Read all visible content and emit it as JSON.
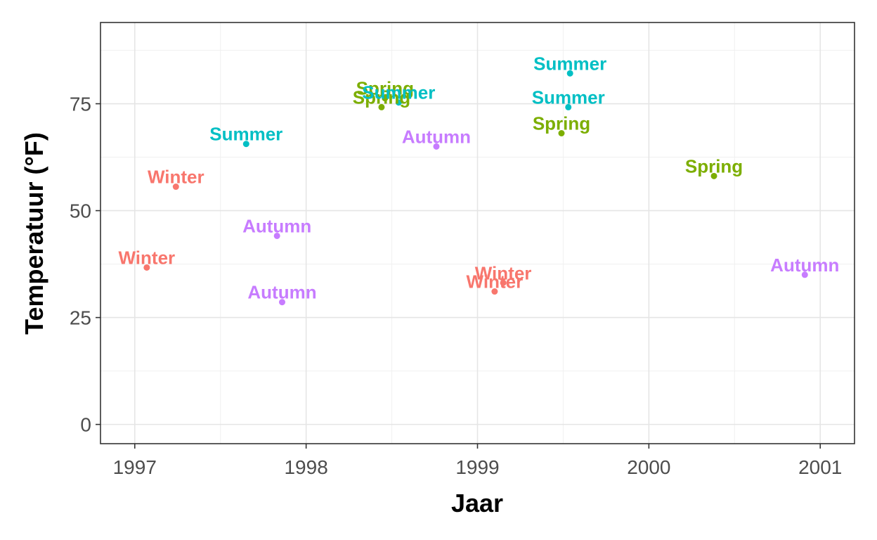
{
  "chart_data": {
    "type": "scatter",
    "xlabel": "Jaar",
    "ylabel": "Temperatuur (°F)",
    "xlim": [
      1996.8,
      2001.2
    ],
    "ylim": [
      -4.5,
      94
    ],
    "x_ticks": [
      1997,
      1998,
      1999,
      2000,
      2001
    ],
    "y_ticks": [
      0,
      25,
      50,
      75
    ],
    "grid": true,
    "colors": {
      "Winter": "#F8766D",
      "Spring": "#7CAE00",
      "Summer": "#00BFC4",
      "Autumn": "#C77CFF"
    },
    "points": [
      {
        "x": 1997.07,
        "y": 36.7,
        "label": "Winter"
      },
      {
        "x": 1997.24,
        "y": 55.6,
        "label": "Winter"
      },
      {
        "x": 1997.65,
        "y": 65.6,
        "label": "Summer"
      },
      {
        "x": 1997.83,
        "y": 44.1,
        "label": "Autumn"
      },
      {
        "x": 1997.86,
        "y": 28.6,
        "label": "Autumn"
      },
      {
        "x": 1998.44,
        "y": 74.2,
        "label": "Spring"
      },
      {
        "x": 1998.46,
        "y": 76.3,
        "label": "Spring"
      },
      {
        "x": 1998.54,
        "y": 75.3,
        "label": "Summer"
      },
      {
        "x": 1998.76,
        "y": 65.0,
        "label": "Autumn"
      },
      {
        "x": 1999.1,
        "y": 31.1,
        "label": "Winter"
      },
      {
        "x": 1999.15,
        "y": 33.1,
        "label": "Winter"
      },
      {
        "x": 1999.49,
        "y": 68.1,
        "label": "Spring"
      },
      {
        "x": 1999.53,
        "y": 74.2,
        "label": "Summer"
      },
      {
        "x": 1999.54,
        "y": 82.1,
        "label": "Summer"
      },
      {
        "x": 2000.38,
        "y": 58.1,
        "label": "Spring"
      },
      {
        "x": 2000.91,
        "y": 35.0,
        "label": "Autumn"
      }
    ]
  }
}
